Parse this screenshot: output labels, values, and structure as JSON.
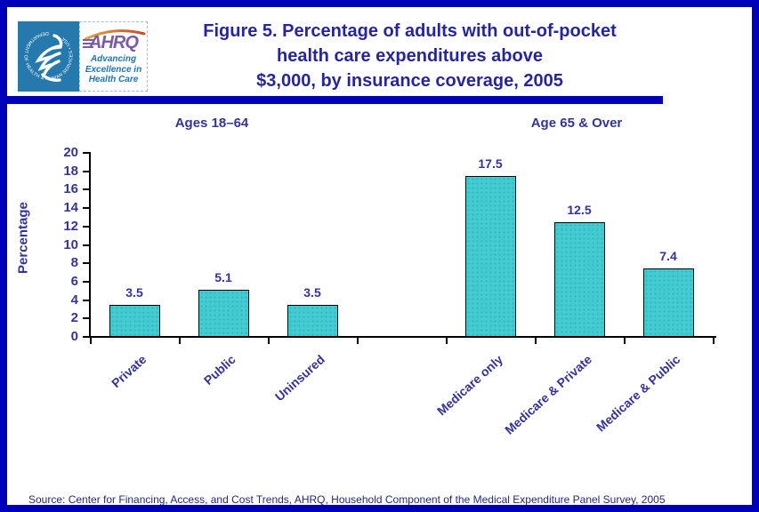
{
  "header": {
    "logo": {
      "hhs_seal_ring_text": "DEPARTMENT OF HEALTH & HUMAN SERVICES • USA",
      "ahrq_acronym": "AHRQ",
      "ahrq_tagline_line1": "Advancing",
      "ahrq_tagline_line2": "Excellence in",
      "ahrq_tagline_line3": "Health Care"
    },
    "title_lines": [
      "Figure 5. Percentage of adults with out-of-pocket",
      "health care expenditures above",
      "$3,000, by insurance coverage, 2005"
    ]
  },
  "chart_data": {
    "type": "bar",
    "title": "",
    "xlabel": "",
    "ylabel": "Percentage",
    "ylim": [
      0,
      20
    ],
    "ytick_step": 2,
    "grid": false,
    "legend": "none",
    "bar_color": "#43CBD1",
    "groups": [
      {
        "label": "Ages 18–64"
      },
      {
        "label": "Age 65 & Over"
      }
    ],
    "categories": [
      "Private",
      "Public",
      "Uninsured",
      "Medicare only",
      "Medicare & Private",
      "Medicare & Public"
    ],
    "values": [
      3.5,
      5.1,
      3.5,
      17.5,
      12.5,
      7.4
    ],
    "group_of_category": [
      0,
      0,
      0,
      1,
      1,
      1
    ]
  },
  "footer": {
    "source": "Source: Center for Financing, Access, and Cost Trends, AHRQ, Household Component of the Medical Expenditure Panel Survey, 2005"
  },
  "colors": {
    "frame_blue": "#0000BB",
    "title_navy": "#26269C",
    "chart_navy": "#333399",
    "bar_teal": "#43CBD1",
    "hhs_blue": "#2679AD",
    "ahrq_purple": "#7B5BA4",
    "ahrq_text_blue": "#1B75BC"
  }
}
